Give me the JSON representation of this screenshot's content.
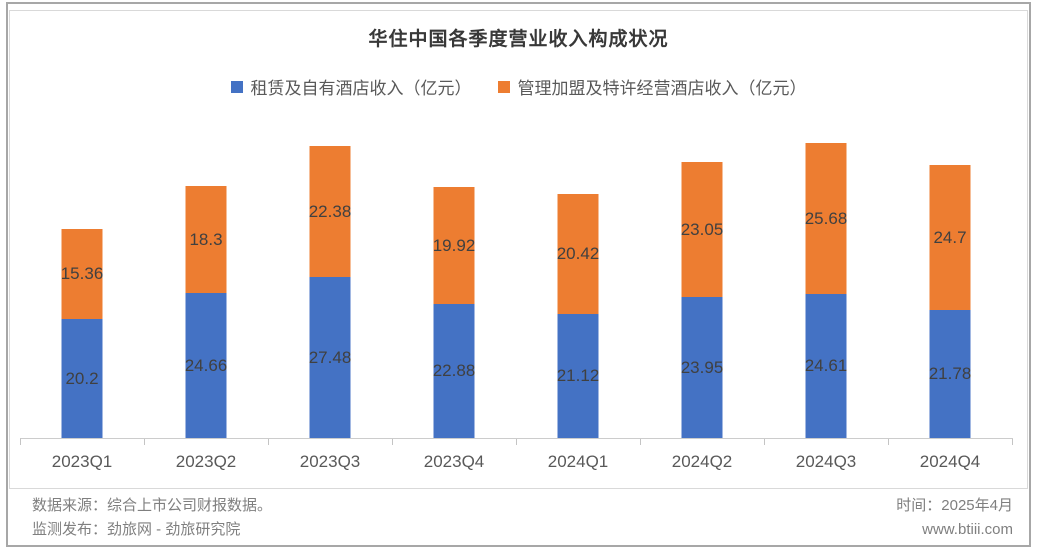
{
  "title": "华住中国各季度营业收入构成状况",
  "legend": [
    {
      "label": "租赁及自有酒店收入（亿元）",
      "color": "#4472C4"
    },
    {
      "label": "管理加盟及特许经营酒店收入（亿元）",
      "color": "#ED7D31"
    }
  ],
  "chart_data": {
    "type": "bar",
    "stacked": true,
    "title": "华住中国各季度营业收入构成状况",
    "categories": [
      "2023Q1",
      "2023Q2",
      "2023Q3",
      "2023Q4",
      "2024Q1",
      "2024Q2",
      "2024Q3",
      "2024Q4"
    ],
    "series": [
      {
        "name": "租赁及自有酒店收入（亿元）",
        "color": "#4472C4",
        "values": [
          20.2,
          24.66,
          27.48,
          22.88,
          21.12,
          23.95,
          24.61,
          21.78
        ]
      },
      {
        "name": "管理加盟及特许经营酒店收入（亿元）",
        "color": "#ED7D31",
        "values": [
          15.36,
          18.3,
          22.38,
          19.92,
          20.42,
          23.05,
          25.68,
          24.7
        ]
      }
    ],
    "xlabel": "",
    "ylabel": "",
    "ylim": [
      0,
      55.7
    ],
    "grid": false,
    "legend_position": "top",
    "value_labels": "centered-inside-each-segment"
  },
  "footer": {
    "source_line": "数据来源：综合上市公司财报数据。",
    "publisher_line": "监测发布：劲旅网 - 劲旅研究院",
    "time_line": "时间：2025年4月",
    "website": "www.btiii.com"
  },
  "colors": {
    "series1": "#4472C4",
    "series2": "#ED7D31",
    "data_label": "#404040",
    "axis_label": "#595959",
    "axis_line": "#cccccc",
    "footer_text": "#7f7f7f",
    "outer_border": "#a7a7a7",
    "panel_border": "#d9d9d9"
  }
}
